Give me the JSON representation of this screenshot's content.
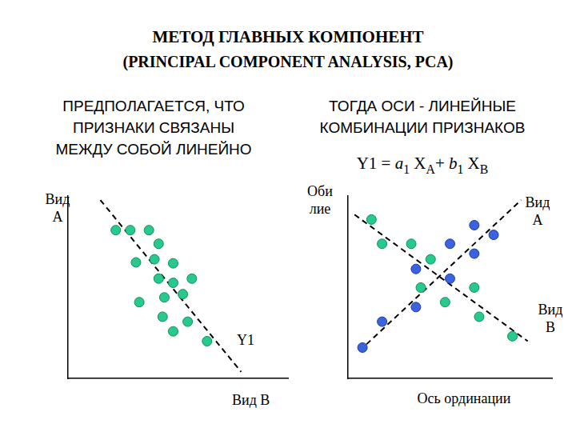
{
  "header": {
    "title": "МЕТОД ГЛАВНЫХ КОМПОНЕНТ",
    "subtitle": "(PRINCIPAL COMPONENT ANALYSIS, PCA)"
  },
  "chart_data": [
    {
      "type": "scatter",
      "title": "ПРЕДПОЛАГАЕТСЯ, ЧТО\nПРИЗНАКИ СВЯЗАНЫ\nМЕЖДУ СОБОЙ ЛИНЕЙНО",
      "x_label": "Вид В",
      "y_label": "Вид\nА",
      "xlim": [
        0,
        100
      ],
      "ylim": [
        0,
        100
      ],
      "tick_labels": false,
      "grid": false,
      "series": [
        {
          "color": "#27c98c",
          "marker": "circle",
          "x": [
            21.7,
            28.3,
            36.8,
            41.2,
            30.9,
            39.3,
            47.8,
            41.2,
            47.8,
            56.3,
            32.4,
            43.8,
            52.2,
            43.0,
            47.8,
            54.4,
            63.2
          ],
          "values": [
            81.3,
            81.3,
            81.3,
            73.8,
            63.6,
            65.3,
            63.1,
            54.7,
            52.4,
            54.7,
            41.8,
            44.4,
            46.2,
            33.8,
            25.8,
            31.1,
            20.4
          ]
        },
        {
          "name": "Y1",
          "type": "line",
          "line_style": "dashed",
          "color": "#000000",
          "x": [
            14.7,
            78.7
          ],
          "values": [
            97.8,
            3.6
          ]
        }
      ]
    },
    {
      "type": "scatter",
      "title": "ТОГДА ОСИ - ЛИНЕЙНЫЕ\nКОМБИНАЦИИ ПРИЗНАКОВ",
      "formula": [
        {
          "text": "Y1 = "
        },
        {
          "text": "a",
          "style": "italic"
        },
        {
          "text": "1",
          "style": "sub"
        },
        {
          "text": " X"
        },
        {
          "text": "A",
          "style": "sub"
        },
        {
          "text": "+ "
        },
        {
          "text": "b",
          "style": "italic"
        },
        {
          "text": "1",
          "style": "sub"
        },
        {
          "text": " X"
        },
        {
          "text": "B",
          "style": "sub"
        }
      ],
      "x_label": "Ось ординации",
      "y_label": "Оби\nлие",
      "xlim": [
        0,
        100
      ],
      "ylim": [
        0,
        100
      ],
      "tick_labels": false,
      "grid": false,
      "series": [
        {
          "color": "#27c98c",
          "marker": "circle",
          "x": [
            11.5,
            16.7,
            31.0,
            40.5,
            35.7,
            47.6,
            61.9,
            64.3,
            80.6
          ],
          "values": [
            87.1,
            73.8,
            73.8,
            65.3,
            49.8,
            41.8,
            49.8,
            33.8,
            23.1
          ]
        },
        {
          "color": "#3b63e0",
          "marker": "circle",
          "x": [
            7.1,
            16.7,
            33.3,
            33.3,
            50.0,
            50.0,
            61.9,
            71.4,
            61.9
          ],
          "values": [
            16.9,
            31.1,
            39.1,
            60.0,
            54.7,
            73.8,
            84.0,
            78.7,
            68.4
          ]
        },
        {
          "name": "Вид\nА",
          "type": "line",
          "line_style": "dashed",
          "color": "#000000",
          "x": [
            5.6,
            84.9
          ],
          "values": [
            15.1,
            97.8
          ]
        },
        {
          "name": "Вид\nВ",
          "type": "line",
          "line_style": "dashed",
          "color": "#000000",
          "x": [
            3.2,
            88.1
          ],
          "values": [
            89.8,
            20.4
          ]
        }
      ]
    }
  ]
}
